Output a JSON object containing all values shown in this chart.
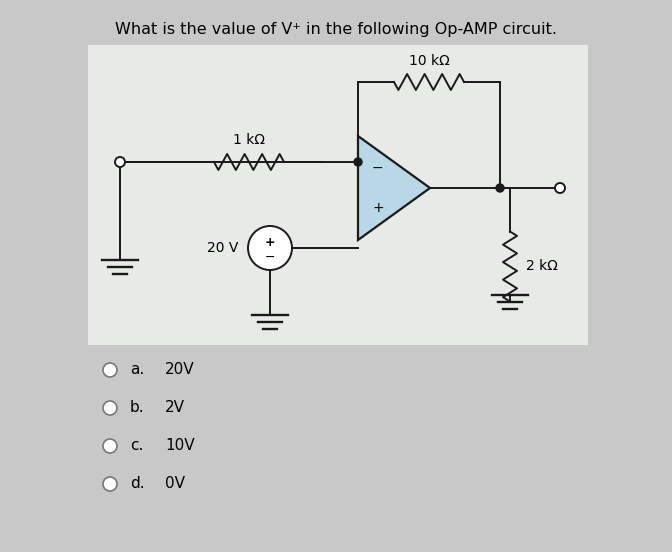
{
  "title": "What is the value of V⁺ in the following Op-AMP circuit.",
  "title_fontsize": 11.5,
  "page_bg": "#c8c8c8",
  "circuit_bg": "#e8eae8",
  "options": [
    [
      "a.",
      "20V"
    ],
    [
      "b.",
      "2V"
    ],
    [
      "c.",
      "10V"
    ],
    [
      "d.",
      "0V"
    ]
  ],
  "option_fontsize": 11,
  "resistor_labels": [
    "1 kΩ",
    "10 kΩ",
    "2 kΩ"
  ],
  "voltage_label": "20 V",
  "opamp_fill": "#b8d8e8",
  "wire_color": "#1a1a1a",
  "lw": 1.4
}
